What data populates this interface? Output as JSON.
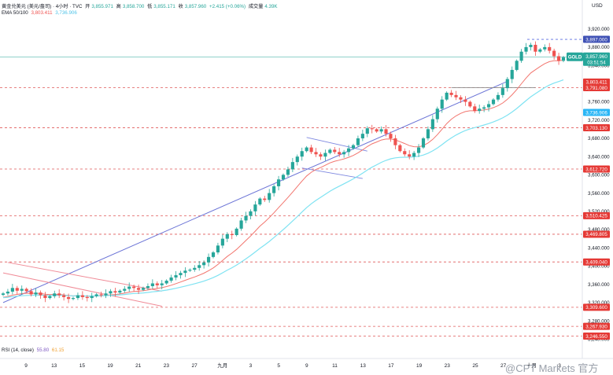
{
  "header": {
    "symbol": "黄金兑美元 (美元/盎司) · 4小时 · TVC",
    "open_label": "开",
    "open": "3,855.971",
    "high_label": "高",
    "high": "3,858.700",
    "low_label": "低",
    "low": "3,855.171",
    "close_label": "收",
    "close": "3,857.960",
    "change": "+2.415 (+0.06%)",
    "volume_label": "成交量",
    "volume": "4.39K"
  },
  "ema": {
    "label": "EMA 50/100",
    "ema50": "3,803.411",
    "ema100": "3,736.906"
  },
  "rsi": {
    "label": "RSI (14, close)",
    "v1": "55.80",
    "v2": "61.15"
  },
  "currency": "USD",
  "watermark": "@CPT Markets 官方",
  "gold_badge": {
    "name": "GOLD",
    "price": "3,857.960",
    "countdown": "03:51:54"
  },
  "colors": {
    "up": "#26a69a",
    "down": "#ef5350",
    "ema50": "#f2756e",
    "ema100": "#7fe3f2",
    "trend": "#6b74d6",
    "level": "#e05a5a",
    "channel": "#f08a96",
    "price_line": "#4db6ac"
  },
  "chart_data": {
    "type": "candlestick",
    "y_axis": {
      "min": 3225,
      "max": 3935,
      "ticks": [
        3920,
        3880,
        3840,
        3800,
        3760,
        3720,
        3680,
        3640,
        3600,
        3560,
        3520,
        3480,
        3440,
        3400,
        3360,
        3320,
        3280,
        3240
      ]
    },
    "x_axis": {
      "labels": [
        "9",
        "13",
        "15",
        "19",
        "21",
        "23",
        "27",
        "九月",
        "3",
        "5",
        "9",
        "11",
        "13",
        "17",
        "19",
        "23",
        "25",
        "27",
        "十月",
        "3"
      ]
    },
    "closes": [
      3340,
      3344,
      3352,
      3346,
      3350,
      3345,
      3338,
      3342,
      3336,
      3330,
      3334,
      3340,
      3336,
      3332,
      3328,
      3330,
      3336,
      3332,
      3330,
      3334,
      3338,
      3336,
      3340,
      3345,
      3342,
      3346,
      3350,
      3355,
      3352,
      3348,
      3352,
      3356,
      3362,
      3358,
      3362,
      3368,
      3375,
      3380,
      3385,
      3390,
      3392,
      3396,
      3402,
      3408,
      3420,
      3430,
      3445,
      3460,
      3470,
      3468,
      3482,
      3500,
      3510,
      3520,
      3535,
      3548,
      3545,
      3560,
      3575,
      3590,
      3600,
      3612,
      3628,
      3640,
      3652,
      3660,
      3650,
      3645,
      3640,
      3648,
      3655,
      3650,
      3645,
      3650,
      3658,
      3665,
      3680,
      3690,
      3702,
      3700,
      3695,
      3700,
      3690,
      3680,
      3665,
      3652,
      3645,
      3640,
      3648,
      3660,
      3680,
      3700,
      3722,
      3745,
      3765,
      3780,
      3775,
      3770,
      3765,
      3760,
      3750,
      3740,
      3745,
      3748,
      3755,
      3765,
      3775,
      3790,
      3810,
      3830,
      3850,
      3870,
      3880,
      3885,
      3870,
      3875,
      3880,
      3872,
      3860,
      3850,
      3857.96
    ],
    "levels": [
      {
        "value": 3897.0,
        "label": "3,897.000",
        "style": "blue"
      },
      {
        "value": 3803.411,
        "label": "3,803.411",
        "style": "ema50"
      },
      {
        "value": 3791.08,
        "label": "3,791.080",
        "style": "red"
      },
      {
        "value": 3736.906,
        "label": "3,736.906",
        "style": "ema100"
      },
      {
        "value": 3703.13,
        "label": "3,703.130",
        "style": "red"
      },
      {
        "value": 3612.72,
        "label": "3,612.720",
        "style": "red"
      },
      {
        "value": 3510.425,
        "label": "3,510.425",
        "style": "red"
      },
      {
        "value": 3469.805,
        "label": "3,469.805",
        "style": "red"
      },
      {
        "value": 3409.04,
        "label": "3,409.040",
        "style": "red"
      },
      {
        "value": 3309.6,
        "label": "3,309.600",
        "style": "red"
      },
      {
        "value": 3267.93,
        "label": "3,267.930",
        "style": "red"
      },
      {
        "value": 3246.55,
        "label": "3,246.550",
        "style": "red"
      }
    ]
  }
}
